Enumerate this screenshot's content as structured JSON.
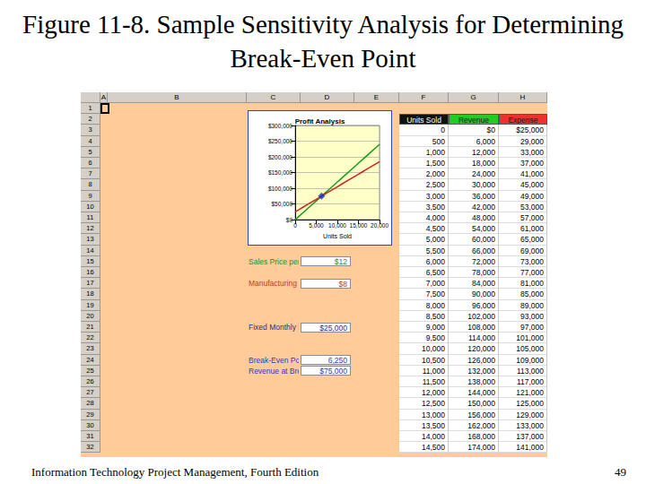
{
  "slide": {
    "title": "Figure 11-8. Sample Sensitivity Analysis for Determining Break-Even Point",
    "footer": "Information Technology Project Management, Fourth Edition",
    "page": "49"
  },
  "sheet": {
    "columns": [
      "A",
      "B",
      "C",
      "D",
      "E",
      "F",
      "G",
      "H"
    ],
    "row_numbers": [
      1,
      2,
      3,
      4,
      5,
      6,
      7,
      8,
      9,
      10,
      11,
      12,
      13,
      14,
      15,
      16,
      17,
      18,
      19,
      20,
      21,
      22,
      23,
      24,
      25,
      26,
      27,
      28,
      29,
      30,
      31,
      32
    ],
    "inputs": [
      {
        "label": "Sales Price per Unit",
        "value": "$12"
      },
      {
        "label": "Manufacturing Cost per Unit",
        "value": "$8"
      },
      {
        "label": "Fixed Monthly Expense",
        "value": "$25,000"
      },
      {
        "label": "Break-Even Point (Units Sold)",
        "value": "6,250"
      },
      {
        "label": "Revenue at Break Even Point",
        "value": "$75,000"
      }
    ],
    "table": {
      "header": [
        "Units Sold",
        "Revenue",
        "Expense"
      ],
      "rows": [
        [
          "0",
          "$0",
          "$25,000"
        ],
        [
          "500",
          "6,000",
          "29,000"
        ],
        [
          "1,000",
          "12,000",
          "33,000"
        ],
        [
          "1,500",
          "18,000",
          "37,000"
        ],
        [
          "2,000",
          "24,000",
          "41,000"
        ],
        [
          "2,500",
          "30,000",
          "45,000"
        ],
        [
          "3,000",
          "36,000",
          "49,000"
        ],
        [
          "3,500",
          "42,000",
          "53,000"
        ],
        [
          "4,000",
          "48,000",
          "57,000"
        ],
        [
          "4,500",
          "54,000",
          "61,000"
        ],
        [
          "5,000",
          "60,000",
          "65,000"
        ],
        [
          "5,500",
          "66,000",
          "69,000"
        ],
        [
          "6,000",
          "72,000",
          "73,000"
        ],
        [
          "6,500",
          "78,000",
          "77,000"
        ],
        [
          "7,000",
          "84,000",
          "81,000"
        ],
        [
          "7,500",
          "90,000",
          "85,000"
        ],
        [
          "8,000",
          "96,000",
          "89,000"
        ],
        [
          "8,500",
          "102,000",
          "93,000"
        ],
        [
          "9,000",
          "108,000",
          "97,000"
        ],
        [
          "9,500",
          "114,000",
          "101,000"
        ],
        [
          "10,000",
          "120,000",
          "105,000"
        ],
        [
          "10,500",
          "126,000",
          "109,000"
        ],
        [
          "11,000",
          "132,000",
          "113,000"
        ],
        [
          "11,500",
          "138,000",
          "117,000"
        ],
        [
          "12,000",
          "144,000",
          "121,000"
        ],
        [
          "12,500",
          "150,000",
          "125,000"
        ],
        [
          "13,000",
          "156,000",
          "129,000"
        ],
        [
          "13,500",
          "162,000",
          "133,000"
        ],
        [
          "14,000",
          "168,000",
          "137,000"
        ],
        [
          "14,500",
          "174,000",
          "141,000"
        ]
      ]
    }
  },
  "chart_data": {
    "type": "line",
    "title": "Profit Analysis",
    "x_label": "Units Sold",
    "x": [
      0,
      1000,
      2000,
      3000,
      4000,
      5000,
      6000,
      7000,
      8000,
      9000,
      10000,
      11000,
      12000,
      13000,
      14000,
      15000,
      16000,
      17000,
      18000,
      19000,
      20000
    ],
    "series": [
      {
        "name": "Revenue",
        "color": "#1a9a1a",
        "marker": "none",
        "values": [
          0,
          12000,
          24000,
          36000,
          48000,
          60000,
          72000,
          84000,
          96000,
          108000,
          120000,
          132000,
          144000,
          156000,
          168000,
          180000,
          192000,
          204000,
          216000,
          228000,
          240000
        ]
      },
      {
        "name": "Expense",
        "color": "#d42020",
        "marker": "none",
        "values": [
          25000,
          33000,
          41000,
          49000,
          57000,
          65000,
          73000,
          81000,
          89000,
          97000,
          105000,
          113000,
          121000,
          129000,
          137000,
          145000,
          153000,
          161000,
          169000,
          177000,
          185000
        ]
      }
    ],
    "markers": [
      {
        "x": 6250,
        "y": 75000,
        "color": "#1a2fb8",
        "marker": "diamond"
      }
    ],
    "xlim": [
      0,
      20000
    ],
    "xticks": [
      0,
      {
        "value": 5000,
        "label": "5,000"
      },
      {
        "value": 10000,
        "label": "10,000"
      },
      {
        "value": 15000,
        "label": "15,000"
      },
      {
        "value": 20000,
        "label": "20,000"
      }
    ],
    "ylim": [
      0,
      300000
    ],
    "yticks": [
      {
        "value": 0,
        "label": "$0"
      },
      {
        "value": 50000,
        "label": "$50,000"
      },
      {
        "value": 100000,
        "label": "$100,000"
      },
      {
        "value": 150000,
        "label": "$150,000"
      },
      {
        "value": 200000,
        "label": "$200,000"
      },
      {
        "value": 250000,
        "label": "$250,000"
      },
      {
        "value": 300000,
        "label": "$300,000"
      }
    ],
    "grid": true
  }
}
